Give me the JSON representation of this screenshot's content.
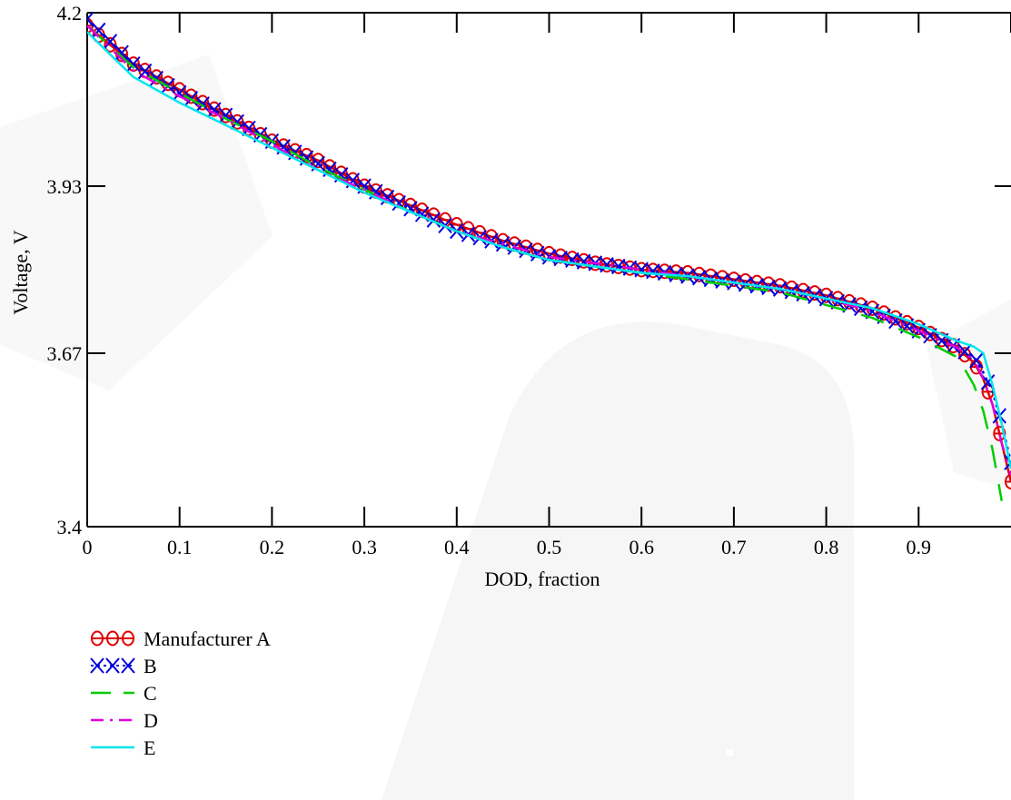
{
  "chart_data": {
    "type": "line",
    "xlabel": "DOD, fraction",
    "ylabel": "Voltage, V",
    "xlim": [
      0,
      1
    ],
    "ylim": [
      3.4,
      4.2
    ],
    "x_ticks": [
      "0",
      "0.1",
      "0.2",
      "0.3",
      "0.4",
      "0.5",
      "0.6",
      "0.7",
      "0.8",
      "0.9"
    ],
    "y_ticks": [
      "4.2",
      "3.93",
      "3.67",
      "3.4"
    ],
    "legend_position": "bottom-left",
    "series": [
      {
        "name": "Manufacturer A",
        "color": "#e00000",
        "marker": "circle",
        "x": [
          0,
          0.05,
          0.1,
          0.15,
          0.2,
          0.25,
          0.3,
          0.35,
          0.4,
          0.45,
          0.5,
          0.55,
          0.6,
          0.65,
          0.7,
          0.75,
          0.8,
          0.85,
          0.9,
          0.94,
          0.96,
          0.97,
          0.98,
          0.99,
          1.0
        ],
        "y": [
          4.18,
          4.12,
          4.08,
          4.04,
          4.0,
          3.97,
          3.93,
          3.9,
          3.87,
          3.845,
          3.825,
          3.81,
          3.8,
          3.795,
          3.785,
          3.775,
          3.76,
          3.74,
          3.71,
          3.68,
          3.655,
          3.63,
          3.59,
          3.53,
          3.47
        ]
      },
      {
        "name": "B",
        "color": "#0000dd",
        "marker": "x",
        "x": [
          0,
          0.05,
          0.1,
          0.15,
          0.2,
          0.25,
          0.3,
          0.35,
          0.4,
          0.45,
          0.5,
          0.55,
          0.6,
          0.65,
          0.7,
          0.75,
          0.8,
          0.85,
          0.9,
          0.94,
          0.96,
          0.97,
          0.98,
          0.99,
          1.0
        ],
        "y": [
          4.19,
          4.12,
          4.075,
          4.04,
          4.0,
          3.965,
          3.93,
          3.895,
          3.86,
          3.84,
          3.82,
          3.81,
          3.8,
          3.79,
          3.78,
          3.77,
          3.755,
          3.735,
          3.705,
          3.68,
          3.665,
          3.64,
          3.61,
          3.56,
          3.5
        ]
      },
      {
        "name": "C",
        "color": "#00cc00",
        "marker": "none",
        "dash": "dash",
        "x": [
          0,
          0.05,
          0.1,
          0.15,
          0.2,
          0.25,
          0.3,
          0.35,
          0.4,
          0.45,
          0.5,
          0.55,
          0.6,
          0.65,
          0.7,
          0.75,
          0.8,
          0.85,
          0.9,
          0.94,
          0.95,
          0.96,
          0.97,
          0.98,
          0.99
        ],
        "y": [
          4.18,
          4.115,
          4.075,
          4.035,
          4.0,
          3.96,
          3.925,
          3.89,
          3.86,
          3.835,
          3.815,
          3.805,
          3.795,
          3.785,
          3.775,
          3.765,
          3.745,
          3.725,
          3.695,
          3.665,
          3.645,
          3.62,
          3.58,
          3.52,
          3.44
        ]
      },
      {
        "name": "D",
        "color": "#dd00dd",
        "marker": "none",
        "dash": "dashdot",
        "x": [
          0,
          0.05,
          0.1,
          0.15,
          0.2,
          0.25,
          0.3,
          0.35,
          0.4,
          0.45,
          0.5,
          0.55,
          0.6,
          0.65,
          0.7,
          0.75,
          0.8,
          0.85,
          0.9,
          0.94,
          0.96,
          0.97,
          0.98,
          0.99,
          1.0
        ],
        "y": [
          4.18,
          4.11,
          4.07,
          4.035,
          3.995,
          3.955,
          3.925,
          3.89,
          3.86,
          3.84,
          3.82,
          3.81,
          3.8,
          3.79,
          3.78,
          3.77,
          3.755,
          3.735,
          3.705,
          3.68,
          3.66,
          3.63,
          3.59,
          3.53,
          3.48
        ]
      },
      {
        "name": "E",
        "color": "#00e5ee",
        "marker": "none",
        "dash": "solid",
        "x": [
          0,
          0.05,
          0.1,
          0.15,
          0.2,
          0.25,
          0.3,
          0.35,
          0.4,
          0.45,
          0.5,
          0.55,
          0.6,
          0.65,
          0.7,
          0.75,
          0.8,
          0.85,
          0.9,
          0.94,
          0.96,
          0.97,
          0.98,
          0.99,
          1.0
        ],
        "y": [
          4.17,
          4.1,
          4.06,
          4.025,
          3.99,
          3.955,
          3.92,
          3.89,
          3.86,
          3.835,
          3.815,
          3.805,
          3.795,
          3.79,
          3.78,
          3.77,
          3.755,
          3.74,
          3.715,
          3.69,
          3.68,
          3.67,
          3.62,
          3.56,
          3.49
        ]
      }
    ]
  }
}
